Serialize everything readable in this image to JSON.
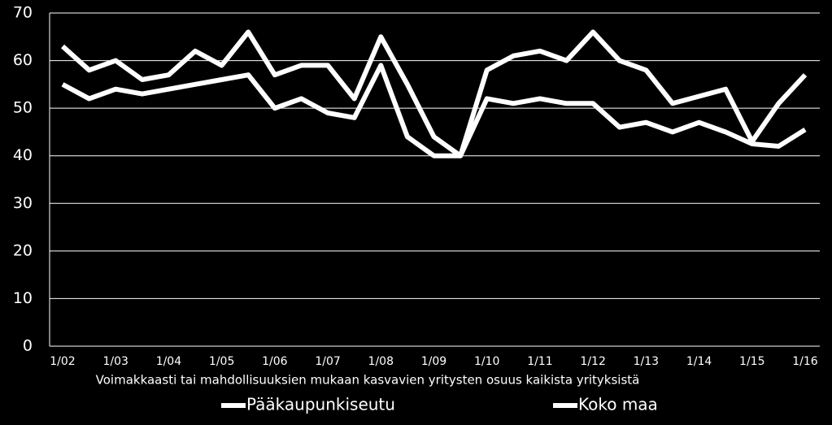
{
  "chart_data": {
    "type": "line",
    "x_label": "Voimakkaasti tai mahdollisuuksien mukaan kasvavien yritysten osuus kaikista yrityksistä",
    "categories": [
      "1/02",
      null,
      "1/03",
      null,
      "1/04",
      null,
      "1/05",
      null,
      "1/06",
      null,
      "1/07",
      null,
      "1/08",
      null,
      "1/09",
      null,
      "1/10",
      null,
      "1/11",
      null,
      "1/12",
      null,
      "1/13",
      null,
      "1/14",
      null,
      "1/15",
      null,
      "1/16"
    ],
    "series": [
      {
        "name": "Pääkaupunkiseutu",
        "color": "#ffffff",
        "values": [
          63,
          58,
          60,
          56,
          57,
          62,
          59,
          66,
          57,
          59,
          59,
          52,
          65,
          55,
          44,
          40,
          58,
          61,
          62,
          60,
          66,
          60,
          58,
          51,
          52.5,
          54,
          43,
          51,
          57
        ]
      },
      {
        "name": "Koko maa",
        "color": "#ffffff",
        "values": [
          55,
          52,
          54,
          53,
          54,
          55,
          56,
          57,
          50,
          52,
          49,
          48,
          59,
          44,
          40,
          40,
          52,
          51,
          52,
          51,
          51,
          46,
          47,
          45,
          47,
          45,
          42.5,
          42,
          45.5
        ]
      }
    ],
    "ylim": [
      0,
      70
    ],
    "yticks": [
      0,
      10,
      20,
      30,
      40,
      50,
      60,
      70
    ],
    "grid": true,
    "legend": "bottom"
  }
}
